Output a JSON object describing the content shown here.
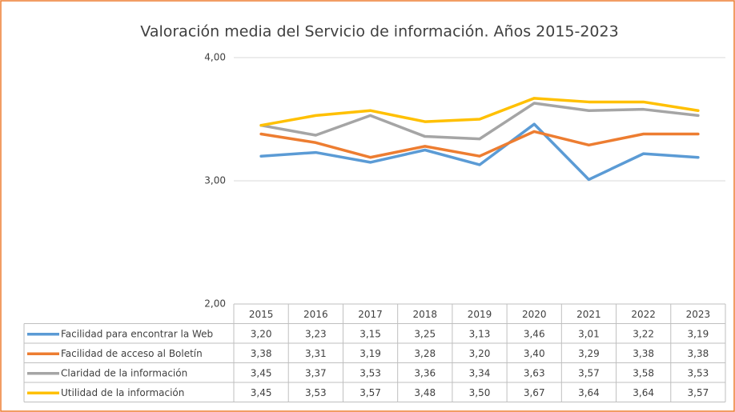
{
  "chart_data": {
    "type": "line",
    "title": "Valoración media del Servicio de información. Años 2015-2023",
    "categories": [
      "2015",
      "2016",
      "2017",
      "2018",
      "2019",
      "2020",
      "2021",
      "2022",
      "2023"
    ],
    "series": [
      {
        "name": "Facilidad para encontrar la Web",
        "color": "#5b9bd5",
        "values": [
          3.2,
          3.23,
          3.15,
          3.25,
          3.13,
          3.46,
          3.01,
          3.22,
          3.19
        ],
        "value_labels": [
          "3,20",
          "3,23",
          "3,15",
          "3,25",
          "3,13",
          "3,46",
          "3,01",
          "3,22",
          "3,19"
        ]
      },
      {
        "name": "Facilidad de acceso al Boletín",
        "color": "#ed7d31",
        "values": [
          3.38,
          3.31,
          3.19,
          3.28,
          3.2,
          3.4,
          3.29,
          3.38,
          3.38
        ],
        "value_labels": [
          "3,38",
          "3,31",
          "3,19",
          "3,28",
          "3,20",
          "3,40",
          "3,29",
          "3,38",
          "3,38"
        ]
      },
      {
        "name": "Claridad de la información",
        "color": "#a5a5a5",
        "values": [
          3.45,
          3.37,
          3.53,
          3.36,
          3.34,
          3.63,
          3.57,
          3.58,
          3.53
        ],
        "value_labels": [
          "3,45",
          "3,37",
          "3,53",
          "3,36",
          "3,34",
          "3,63",
          "3,57",
          "3,58",
          "3,53"
        ]
      },
      {
        "name": "Utilidad de la información",
        "color": "#ffc000",
        "values": [
          3.45,
          3.53,
          3.57,
          3.48,
          3.5,
          3.67,
          3.64,
          3.64,
          3.57
        ],
        "value_labels": [
          "3,45",
          "3,53",
          "3,57",
          "3,48",
          "3,50",
          "3,67",
          "3,64",
          "3,64",
          "3,57"
        ]
      }
    ],
    "ylim": [
      2,
      4
    ],
    "yticks": [
      {
        "value": 2,
        "label": "2,00"
      },
      {
        "value": 3,
        "label": "3,00"
      },
      {
        "value": 4,
        "label": "4,00"
      }
    ],
    "grid": true
  }
}
